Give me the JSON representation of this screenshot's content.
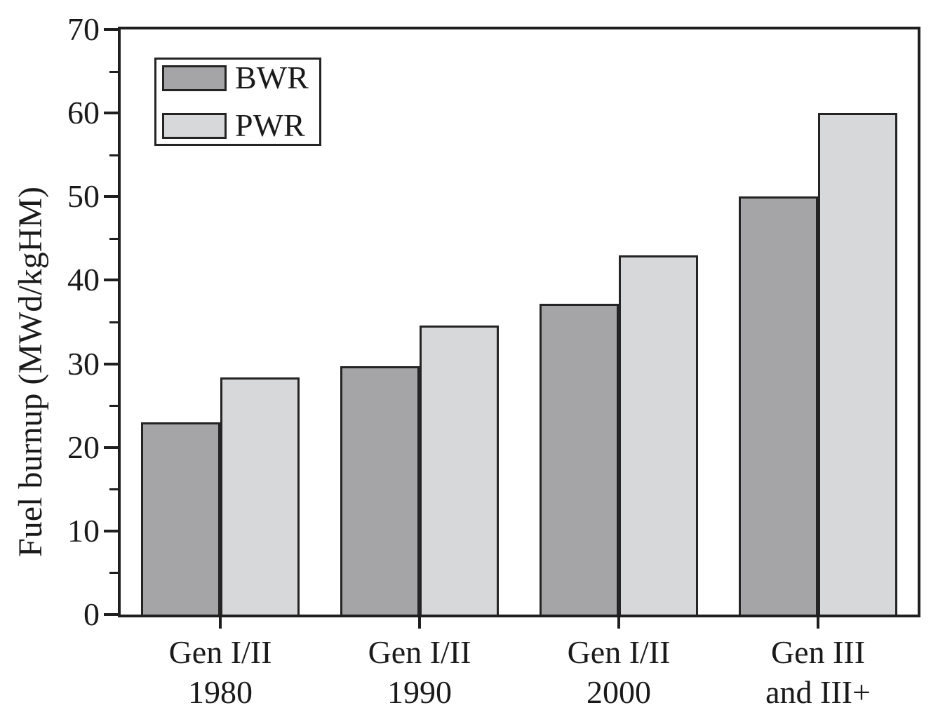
{
  "figure": {
    "background": "#ffffff",
    "text_color": "#1a1a1a",
    "frame_color": "#1f1f1f"
  },
  "chart_data": {
    "type": "bar",
    "title": "",
    "xlabel": "",
    "ylabel": "Fuel burnup (MWd/kgHM)",
    "ylim": [
      0,
      70
    ],
    "yticks_major": [
      0,
      10,
      20,
      30,
      40,
      50,
      60,
      70
    ],
    "yticks_minor": [
      5,
      15,
      25,
      35,
      45,
      55,
      65
    ],
    "grid": false,
    "legend_position": "top-left",
    "categories": [
      {
        "line1": "Gen I/II",
        "line2": "1980"
      },
      {
        "line1": "Gen I/II",
        "line2": "1990"
      },
      {
        "line1": "Gen I/II",
        "line2": "2000"
      },
      {
        "line1": "Gen III",
        "line2": "and III+"
      }
    ],
    "series": [
      {
        "name": "BWR",
        "color": "#a5a5a8",
        "values": [
          23,
          29.7,
          37.2,
          50
        ]
      },
      {
        "name": "PWR",
        "color": "#d7d8d9",
        "values": [
          28.4,
          34.6,
          43,
          60
        ]
      }
    ]
  }
}
